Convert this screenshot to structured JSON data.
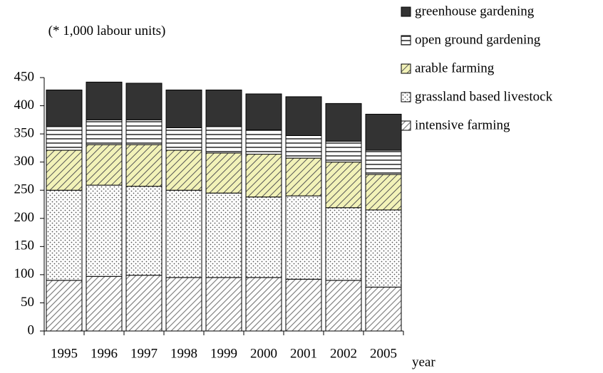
{
  "chart_data": {
    "type": "stacked_bar",
    "ylabel": "(* 1,000 labour units)",
    "xlabel": "year",
    "categories": [
      "1995",
      "1996",
      "1997",
      "1998",
      "1999",
      "2000",
      "2001",
      "2002",
      "2005"
    ],
    "series": [
      {
        "name": "intensive farming",
        "values": [
          90,
          97,
          99,
          95,
          95,
          95,
          92,
          90,
          78
        ]
      },
      {
        "name": "grassland based livestock",
        "values": [
          160,
          162,
          158,
          155,
          150,
          143,
          148,
          129,
          137
        ]
      },
      {
        "name": "arable farming",
        "values": [
          71,
          72,
          74,
          71,
          71,
          76,
          67,
          81,
          63
        ]
      },
      {
        "name": "open ground gardening",
        "values": [
          42,
          44,
          44,
          40,
          47,
          43,
          40,
          37,
          43
        ]
      },
      {
        "name": "greenhouse gardening",
        "values": [
          65,
          67,
          65,
          67,
          65,
          64,
          69,
          67,
          64
        ]
      }
    ],
    "ylim": [
      0,
      450
    ],
    "yticks": [
      0,
      50,
      100,
      150,
      200,
      250,
      300,
      350,
      400,
      450
    ]
  }
}
